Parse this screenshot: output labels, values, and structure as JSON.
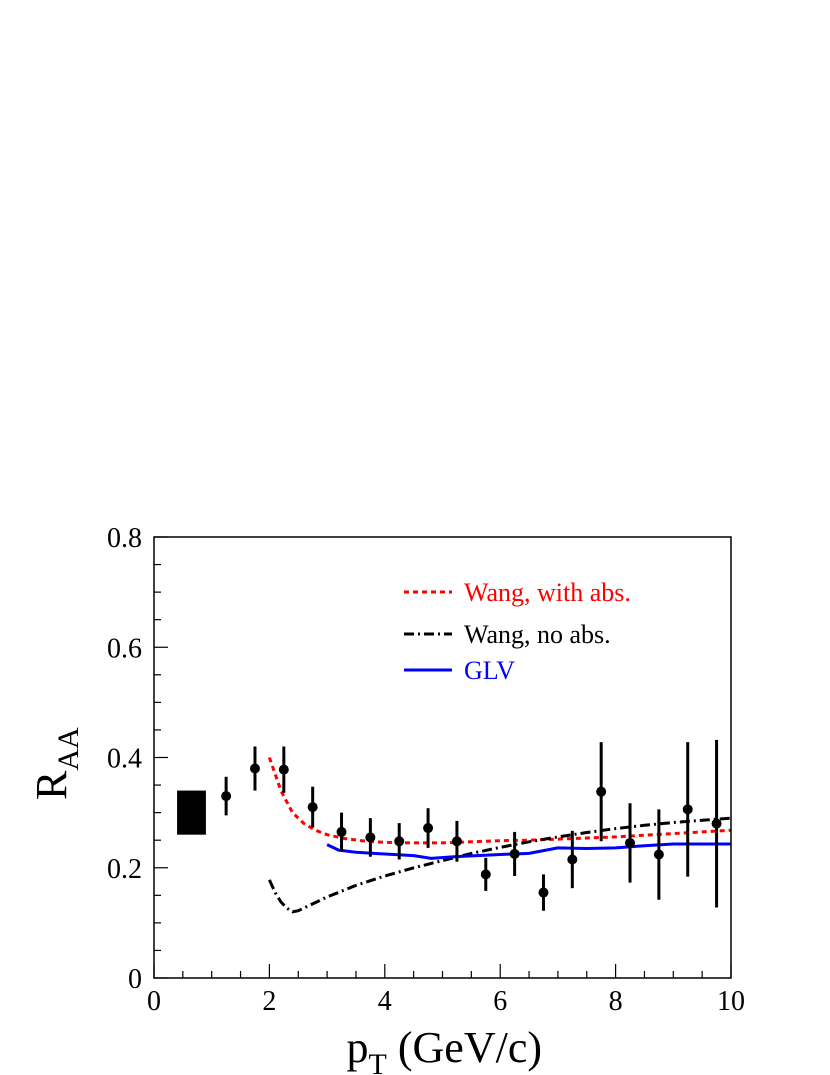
{
  "chart_data": {
    "type": "scatter",
    "xlabel_main": "p",
    "xlabel_sub": "T",
    "xlabel_rest": " (GeV/c)",
    "ylabel_main": "R",
    "ylabel_sub": "AA",
    "xlim": [
      0,
      10
    ],
    "ylim": [
      0,
      0.8
    ],
    "xticks": [
      {
        "value": 0,
        "label": "0"
      },
      {
        "value": 2,
        "label": "2"
      },
      {
        "value": 4,
        "label": "4"
      },
      {
        "value": 6,
        "label": "6"
      },
      {
        "value": 8,
        "label": "8"
      },
      {
        "value": 10,
        "label": "10"
      }
    ],
    "yticks": [
      {
        "value": 0,
        "label": "0"
      },
      {
        "value": 0.2,
        "label": "0.2"
      },
      {
        "value": 0.4,
        "label": "0.4"
      },
      {
        "value": 0.6,
        "label": "0.6"
      },
      {
        "value": 0.8,
        "label": "0.8"
      }
    ],
    "legend_position": "top-right",
    "normalization_box": {
      "x": [
        0.4,
        0.9
      ],
      "y": [
        0.26,
        0.34
      ],
      "color": "#000000"
    },
    "data_points": [
      {
        "x": 1.25,
        "y": 0.33,
        "err": 0.035
      },
      {
        "x": 1.75,
        "y": 0.38,
        "err": 0.04
      },
      {
        "x": 2.25,
        "y": 0.378,
        "err": 0.042
      },
      {
        "x": 2.75,
        "y": 0.31,
        "err": 0.037
      },
      {
        "x": 3.25,
        "y": 0.265,
        "err": 0.035
      },
      {
        "x": 3.75,
        "y": 0.255,
        "err": 0.035
      },
      {
        "x": 4.25,
        "y": 0.248,
        "err": 0.033
      },
      {
        "x": 4.75,
        "y": 0.272,
        "err": 0.036
      },
      {
        "x": 5.25,
        "y": 0.248,
        "err": 0.037
      },
      {
        "x": 5.75,
        "y": 0.188,
        "err": 0.03
      },
      {
        "x": 6.25,
        "y": 0.225,
        "err": 0.04
      },
      {
        "x": 6.75,
        "y": 0.155,
        "err": 0.033
      },
      {
        "x": 7.25,
        "y": 0.215,
        "err": 0.052
      },
      {
        "x": 7.75,
        "y": 0.338,
        "err": 0.09
      },
      {
        "x": 8.25,
        "y": 0.245,
        "err": 0.072
      },
      {
        "x": 8.75,
        "y": 0.224,
        "err": 0.082
      },
      {
        "x": 9.25,
        "y": 0.306,
        "err": 0.122
      },
      {
        "x": 9.75,
        "y": 0.28,
        "err": 0.152
      }
    ],
    "series": [
      {
        "name": "Wang, with abs.",
        "color": "#ff0000",
        "style": "dotted",
        "x": [
          2.0,
          2.2,
          2.4,
          2.6,
          2.8,
          3.0,
          3.3,
          3.6,
          4.0,
          4.5,
          5.0,
          5.5,
          6.0,
          6.5,
          7.0,
          7.5,
          8.0,
          8.5,
          9.0,
          9.5,
          10.0
        ],
        "y": [
          0.4,
          0.34,
          0.3,
          0.28,
          0.268,
          0.26,
          0.253,
          0.249,
          0.246,
          0.245,
          0.245,
          0.247,
          0.249,
          0.25,
          0.252,
          0.254,
          0.256,
          0.259,
          0.262,
          0.265,
          0.268
        ]
      },
      {
        "name": "Wang, no abs.",
        "color": "#000000",
        "style": "dashdot",
        "x": [
          2.0,
          2.1,
          2.2,
          2.3,
          2.4,
          2.5,
          2.7,
          3.0,
          3.5,
          4.0,
          4.5,
          5.0,
          5.5,
          6.0,
          6.5,
          7.0,
          7.5,
          8.0,
          8.5,
          9.0,
          9.5,
          10.0
        ],
        "y": [
          0.178,
          0.155,
          0.138,
          0.127,
          0.12,
          0.122,
          0.132,
          0.147,
          0.168,
          0.185,
          0.2,
          0.213,
          0.226,
          0.237,
          0.247,
          0.256,
          0.264,
          0.271,
          0.277,
          0.282,
          0.286,
          0.29
        ]
      },
      {
        "name": "GLV",
        "color": "#0000ff",
        "style": "solid",
        "x": [
          3.0,
          3.2,
          3.5,
          4.0,
          4.5,
          4.8,
          5.2,
          5.6,
          6.0,
          6.5,
          7.0,
          7.5,
          8.0,
          8.5,
          9.0,
          9.5,
          10.0
        ],
        "y": [
          0.242,
          0.232,
          0.228,
          0.225,
          0.222,
          0.217,
          0.22,
          0.222,
          0.224,
          0.226,
          0.236,
          0.235,
          0.236,
          0.24,
          0.243,
          0.243,
          0.243
        ]
      }
    ]
  }
}
